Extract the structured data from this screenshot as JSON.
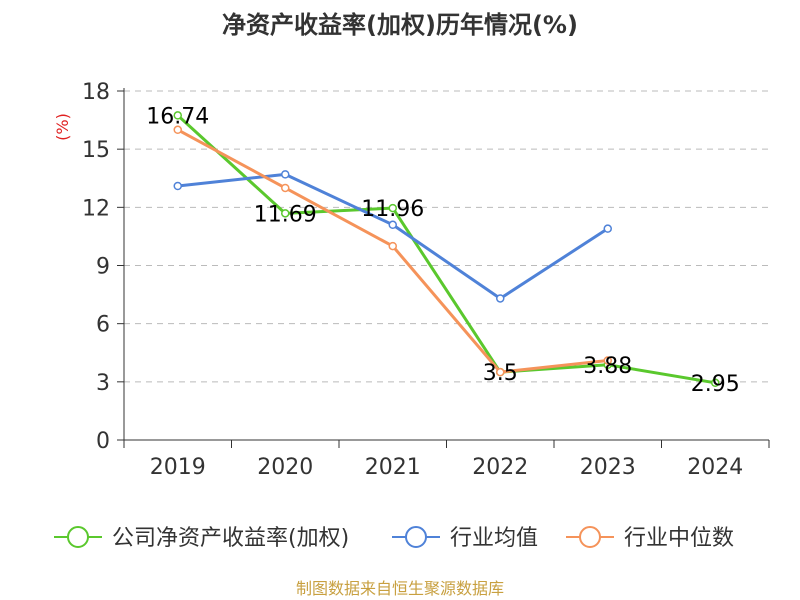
{
  "chart_data": {
    "type": "line",
    "title": "净资产收益率(加权)历年情况(%)",
    "ylabel": "(%)",
    "xlabel": "",
    "categories": [
      "2019",
      "2020",
      "2021",
      "2022",
      "2023",
      "2024"
    ],
    "yticks": [
      0,
      3,
      6,
      9,
      12,
      15,
      18
    ],
    "ylim": [
      0,
      18
    ],
    "grid": true,
    "legend_position": "bottom",
    "series": [
      {
        "name": "公司净资产收益率(加权)",
        "color": "#5ac82d",
        "values": [
          16.74,
          11.69,
          11.96,
          3.5,
          3.88,
          2.95
        ],
        "labels": [
          "16.74",
          "11.69",
          "11.96",
          "3.5",
          "3.88",
          "2.95"
        ]
      },
      {
        "name": "行业均值",
        "color": "#4f82d8",
        "values": [
          13.1,
          13.7,
          11.1,
          7.3,
          10.9,
          null
        ]
      },
      {
        "name": "行业中位数",
        "color": "#f5935a",
        "values": [
          16.0,
          13.0,
          10.0,
          3.5,
          4.1,
          null
        ]
      }
    ]
  },
  "source_text": "制图数据来自恒生聚源数据库"
}
